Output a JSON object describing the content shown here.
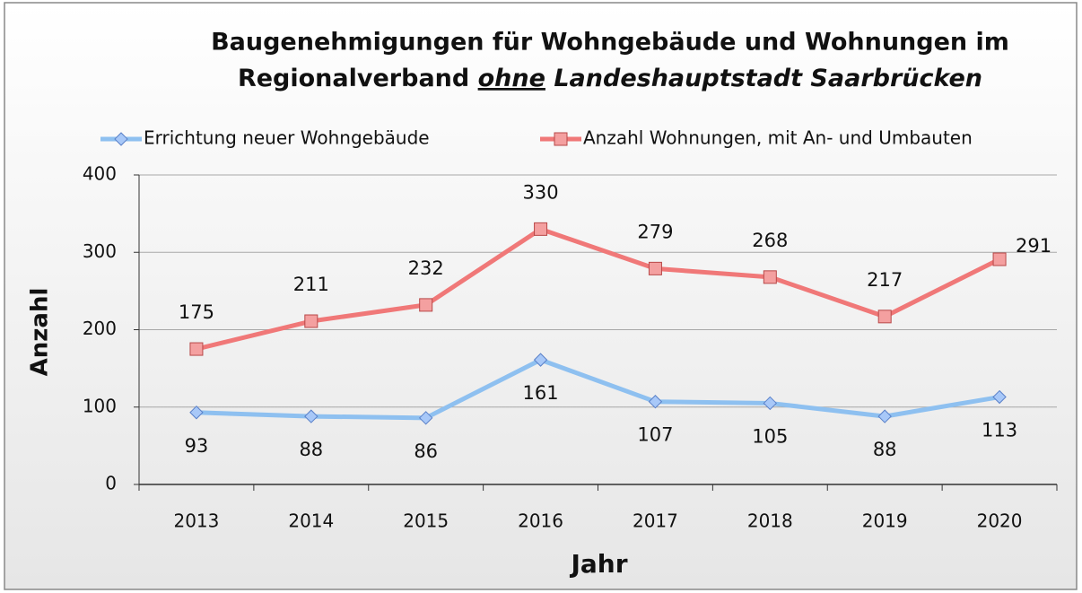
{
  "chart_data": {
    "type": "line",
    "title": [
      "Baugenehmigungen für Wohngebäude und Wohnungen im",
      "Regionalverband",
      "ohne",
      "Landeshauptstadt Saarbrücken"
    ],
    "x_label": "Jahr",
    "y_label": "Anzahl",
    "categories": [
      "2013",
      "2014",
      "2015",
      "2016",
      "2017",
      "2018",
      "2019",
      "2020"
    ],
    "series": [
      {
        "name": "Errichtung neuer Wohngebäude",
        "color": "#8ec0f0",
        "marker": "diamond",
        "values": [
          93,
          88,
          86,
          161,
          107,
          105,
          88,
          113
        ]
      },
      {
        "name": "Anzahl Wohnungen, mit An- und Umbauten",
        "color": "#f07878",
        "marker": "square",
        "values": [
          175,
          211,
          232,
          330,
          279,
          268,
          217,
          291
        ]
      }
    ],
    "ylim": [
      0,
      400
    ],
    "yticks": [
      0,
      100,
      200,
      300,
      400
    ],
    "grid": true,
    "legend": "top"
  }
}
